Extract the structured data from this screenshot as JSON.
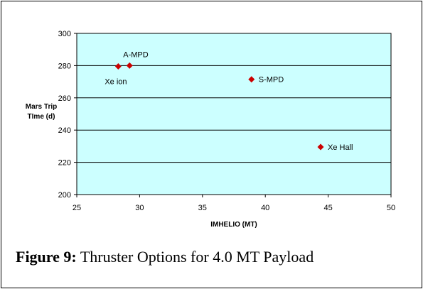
{
  "chart_data": {
    "type": "scatter",
    "xlabel": "IMHELIO (MT)",
    "ylabel_lines": [
      "Mars Trip",
      "TIme (d)"
    ],
    "xlim": [
      25,
      50
    ],
    "ylim": [
      200,
      300
    ],
    "x_ticks": [
      25,
      30,
      35,
      40,
      45,
      50
    ],
    "y_ticks": [
      200,
      220,
      240,
      260,
      280,
      300
    ],
    "grid": "horizontal",
    "plot_background": "#ccffff",
    "marker_color": "#cc0000",
    "marker": "diamond",
    "points": [
      {
        "label": "Xe ion",
        "x": 28.3,
        "y": 279.5,
        "label_pos": "below"
      },
      {
        "label": "A-MPD",
        "x": 29.2,
        "y": 280.0,
        "label_pos": "above"
      },
      {
        "label": "S-MPD",
        "x": 38.9,
        "y": 271.5,
        "label_pos": "right"
      },
      {
        "label": "Xe Hall",
        "x": 44.4,
        "y": 229.5,
        "label_pos": "right"
      }
    ]
  },
  "caption": {
    "prefix": "Figure 9:",
    "text": " Thruster Options for 4.0 MT Payload"
  }
}
